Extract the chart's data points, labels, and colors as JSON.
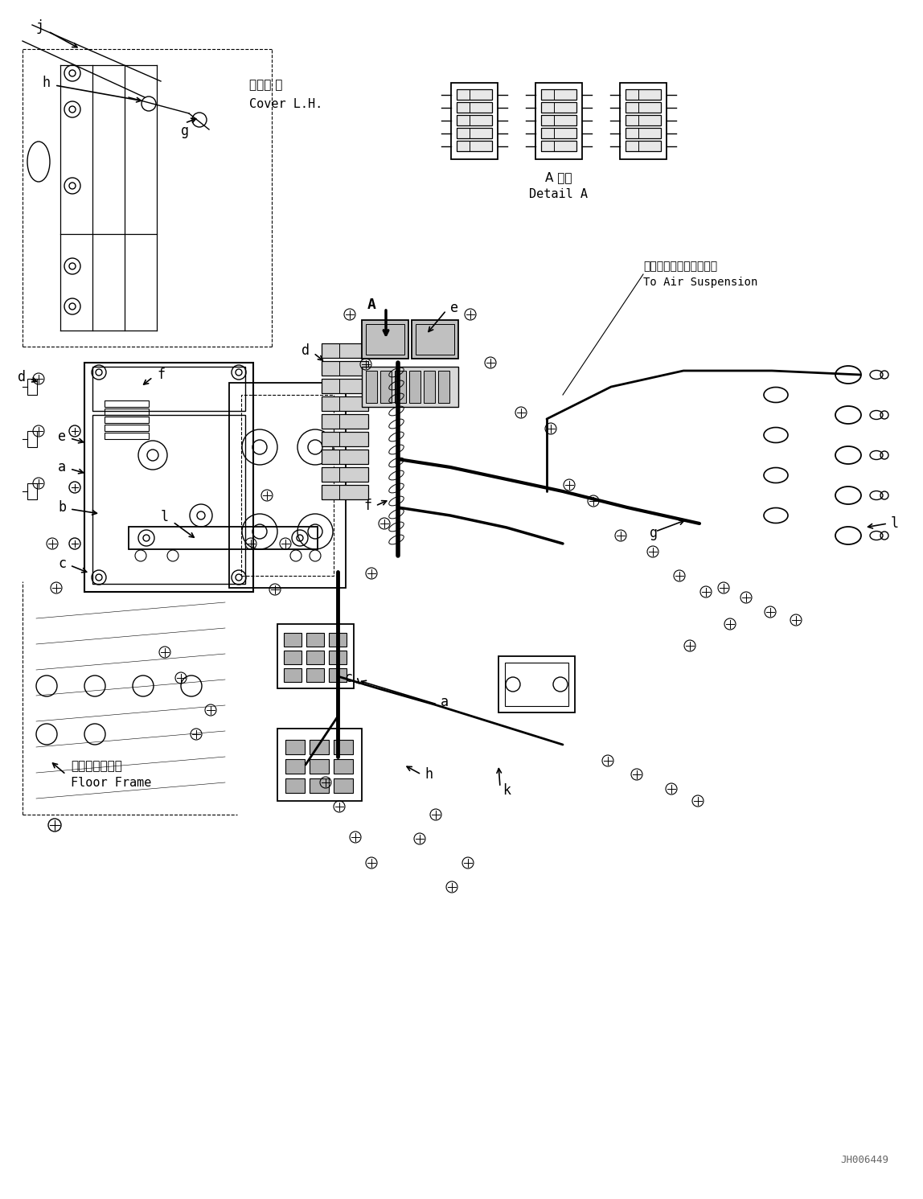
{
  "bg_color": "#ffffff",
  "line_color": "#000000",
  "fig_width": 11.48,
  "fig_height": 14.91,
  "dpi": 100,
  "watermark": "JH006449",
  "labels": {
    "cover_jp": "カバー 左",
    "cover_en": "Cover L.H.",
    "detail_jp": "A 詳細",
    "detail_en": "Detail A",
    "air_jp": "エアーサスペンションへ",
    "air_en": "To Air Suspension",
    "floor_jp": "フロアフレーム",
    "floor_en": "Floor Frame"
  },
  "font_size_watermark": 9
}
